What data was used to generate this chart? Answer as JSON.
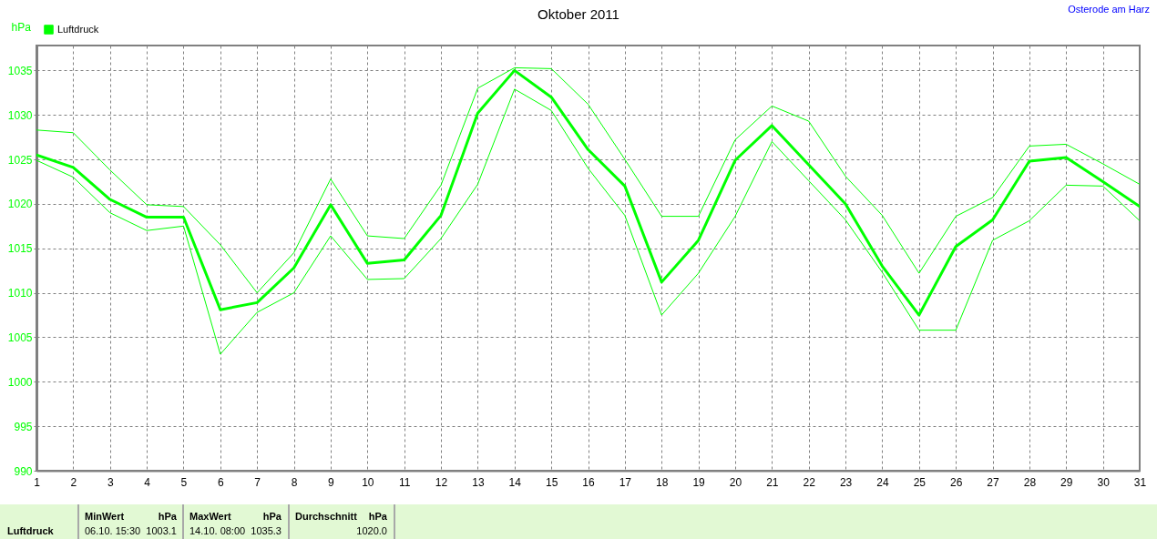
{
  "chart_data": {
    "type": "line",
    "title": "Oktober 2011",
    "ylabel": "hPa",
    "x": [
      1,
      2,
      3,
      4,
      5,
      6,
      7,
      8,
      9,
      10,
      11,
      12,
      13,
      14,
      15,
      16,
      17,
      18,
      19,
      20,
      21,
      22,
      23,
      24,
      25,
      26,
      27,
      28,
      29,
      30,
      31
    ],
    "xlim": [
      1,
      31
    ],
    "xticks": [
      1,
      2,
      3,
      4,
      5,
      6,
      7,
      8,
      9,
      10,
      11,
      12,
      13,
      14,
      15,
      16,
      17,
      18,
      19,
      20,
      21,
      22,
      23,
      24,
      25,
      26,
      27,
      28,
      29,
      30,
      31
    ],
    "ylim": [
      990,
      1037.8
    ],
    "yticks": [
      990,
      995,
      1000,
      1005,
      1010,
      1015,
      1020,
      1025,
      1030,
      1035
    ],
    "grid": true,
    "legend": "top left",
    "series": [
      {
        "name": "Luftdruck",
        "color": "#00ff00",
        "values": [
          1025.5,
          1024.1,
          1020.5,
          1018.5,
          1018.5,
          1008.1,
          1008.9,
          1012.8,
          1019.9,
          1013.3,
          1013.7,
          1018.7,
          1030.2,
          1035.0,
          1032.0,
          1026.1,
          1022.0,
          1011.2,
          1015.9,
          1024.9,
          1028.8,
          1024.4,
          1020.0,
          1013.0,
          1007.5,
          1015.2,
          1018.2,
          1024.8,
          1025.2,
          1022.5,
          1019.7
        ]
      },
      {
        "color": "#00ff00",
        "values": [
          1028.3,
          1028.0,
          1023.8,
          1019.9,
          1019.7,
          1015.4,
          1010.0,
          1014.5,
          1022.8,
          1016.4,
          1016.1,
          1022.1,
          1033.0,
          1035.3,
          1035.2,
          1031.2,
          1025.0,
          1018.6,
          1018.6,
          1027.2,
          1031.0,
          1029.3,
          1023.1,
          1018.7,
          1012.2,
          1018.6,
          1020.7,
          1026.5,
          1026.7,
          1024.5,
          1022.2
        ]
      },
      {
        "color": "#00ff00",
        "values": [
          1024.9,
          1023.0,
          1019.0,
          1017.0,
          1017.5,
          1003.1,
          1007.8,
          1010.0,
          1016.4,
          1011.5,
          1011.6,
          1016.1,
          1022.2,
          1032.9,
          1030.5,
          1024.0,
          1018.7,
          1007.5,
          1012.2,
          1018.6,
          1027.0,
          1022.6,
          1018.2,
          1012.3,
          1005.8,
          1005.8,
          1015.9,
          1018.1,
          1022.1,
          1022.0,
          1018.1
        ]
      }
    ],
    "annotations": [
      "Osterode am Harz",
      "Luftdruck",
      "MinWert",
      "hPa",
      "06.10.  15:30",
      "1003.1",
      "MaxWert",
      "hPa",
      "14.10.  08:00",
      "1035.3",
      "Durchschnitt",
      "hPa",
      "1020.0"
    ]
  }
}
